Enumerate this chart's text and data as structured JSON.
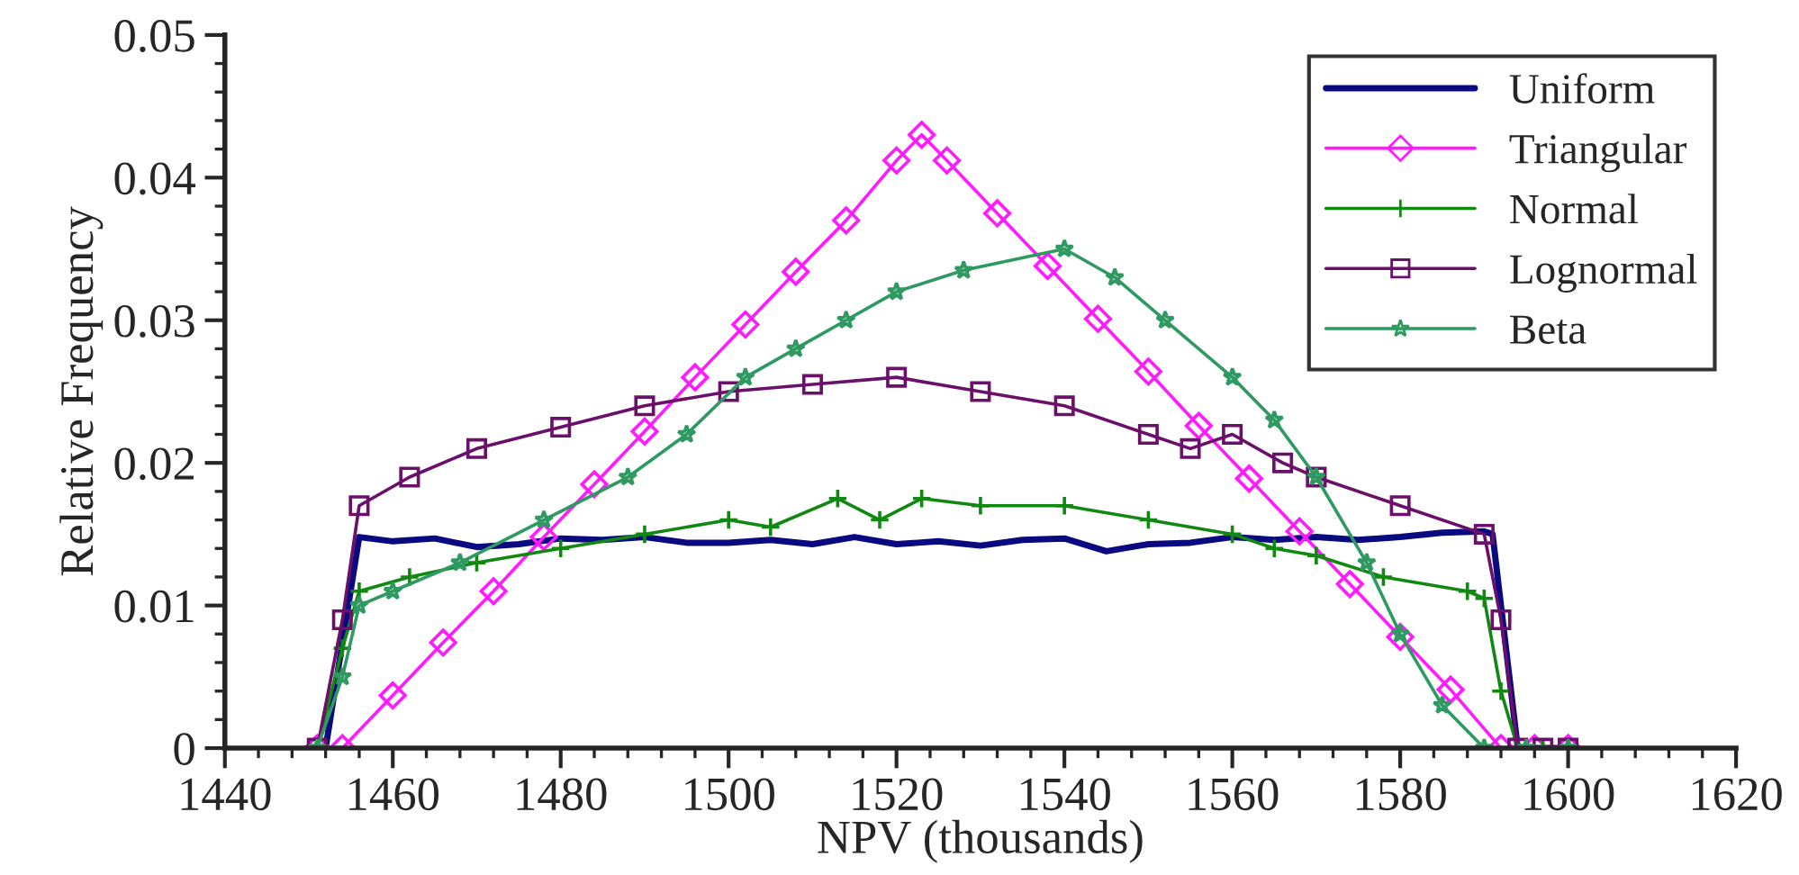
{
  "chart_data": {
    "type": "line",
    "xlabel": "NPV (thousands)",
    "ylabel": "Relative Frequency",
    "xlim": [
      1440,
      1620
    ],
    "xticks": [
      1440,
      1460,
      1480,
      1500,
      1520,
      1540,
      1560,
      1580,
      1600,
      1620
    ],
    "ylim": [
      0,
      0.05
    ],
    "yticks": [
      {
        "value": 0,
        "label": "0"
      },
      0.01,
      0.02,
      0.03,
      0.04,
      0.05
    ],
    "grid": false,
    "legend": "top right",
    "line_style": "solid",
    "series": [
      {
        "name": "Uniform",
        "color": "#0a0a80",
        "marker": "none",
        "x": [
          1450,
          1452,
          1456,
          1460,
          1465,
          1470,
          1475,
          1480,
          1485,
          1490,
          1495,
          1500,
          1505,
          1510,
          1515,
          1520,
          1525,
          1530,
          1535,
          1540,
          1545,
          1550,
          1555,
          1560,
          1565,
          1570,
          1575,
          1580,
          1585,
          1590,
          1591,
          1594,
          1597,
          1600
        ],
        "values": [
          0,
          0,
          0.0148,
          0.0145,
          0.0147,
          0.0141,
          0.0143,
          0.0147,
          0.0146,
          0.0148,
          0.0144,
          0.0144,
          0.0146,
          0.0143,
          0.0148,
          0.0143,
          0.0145,
          0.0142,
          0.0146,
          0.0147,
          0.0138,
          0.0143,
          0.0144,
          0.0148,
          0.0146,
          0.0148,
          0.0146,
          0.0148,
          0.0151,
          0.0152,
          0.015,
          0,
          0,
          0
        ]
      },
      {
        "name": "Triangular",
        "color": "#ff1aff",
        "marker": "diamond",
        "x": [
          1451,
          1454,
          1460,
          1466,
          1472,
          1478,
          1484,
          1490,
          1496,
          1502,
          1508,
          1514,
          1520,
          1523,
          1526,
          1532,
          1538,
          1544,
          1550,
          1556,
          1562,
          1568,
          1574,
          1580,
          1586,
          1592,
          1596,
          1600
        ],
        "values": [
          0,
          0,
          0.0037,
          0.0074,
          0.011,
          0.0148,
          0.0185,
          0.0222,
          0.026,
          0.0297,
          0.0334,
          0.037,
          0.0412,
          0.043,
          0.0412,
          0.0375,
          0.0338,
          0.0301,
          0.0264,
          0.0226,
          0.0189,
          0.0152,
          0.0115,
          0.0078,
          0.0041,
          0,
          0,
          0
        ]
      },
      {
        "name": "Normal",
        "color": "#118811",
        "marker": "cross",
        "x": [
          1451,
          1454,
          1456,
          1462,
          1470,
          1480,
          1490,
          1500,
          1505,
          1513,
          1518,
          1523,
          1530,
          1540,
          1550,
          1560,
          1565,
          1570,
          1578,
          1588,
          1590,
          1592,
          1594,
          1597,
          1600
        ],
        "values": [
          0,
          0.007,
          0.011,
          0.012,
          0.013,
          0.014,
          0.015,
          0.016,
          0.0155,
          0.0175,
          0.016,
          0.0175,
          0.017,
          0.017,
          0.016,
          0.015,
          0.014,
          0.0135,
          0.012,
          0.011,
          0.0105,
          0.004,
          0,
          0,
          0
        ]
      },
      {
        "name": "Lognormal",
        "color": "#6a0f6a",
        "marker": "square",
        "x": [
          1451,
          1454,
          1456,
          1462,
          1470,
          1480,
          1490,
          1500,
          1510,
          1520,
          1530,
          1540,
          1550,
          1555,
          1560,
          1566,
          1570,
          1580,
          1590,
          1592,
          1594,
          1597,
          1600
        ],
        "values": [
          0,
          0.009,
          0.017,
          0.019,
          0.021,
          0.0225,
          0.024,
          0.025,
          0.0255,
          0.026,
          0.025,
          0.024,
          0.022,
          0.021,
          0.022,
          0.02,
          0.019,
          0.017,
          0.015,
          0.009,
          0,
          0,
          0
        ]
      },
      {
        "name": "Beta",
        "color": "#2e9960",
        "marker": "star",
        "x": [
          1451,
          1454,
          1456,
          1460,
          1468,
          1478,
          1488,
          1495,
          1502,
          1508,
          1514,
          1520,
          1528,
          1540,
          1546,
          1552,
          1560,
          1565,
          1570,
          1576,
          1580,
          1585,
          1590,
          1595,
          1600
        ],
        "values": [
          0,
          0.005,
          0.01,
          0.011,
          0.013,
          0.016,
          0.019,
          0.022,
          0.026,
          0.028,
          0.03,
          0.032,
          0.0335,
          0.035,
          0.033,
          0.03,
          0.026,
          0.023,
          0.019,
          0.013,
          0.008,
          0.003,
          0,
          0,
          0
        ]
      }
    ]
  }
}
